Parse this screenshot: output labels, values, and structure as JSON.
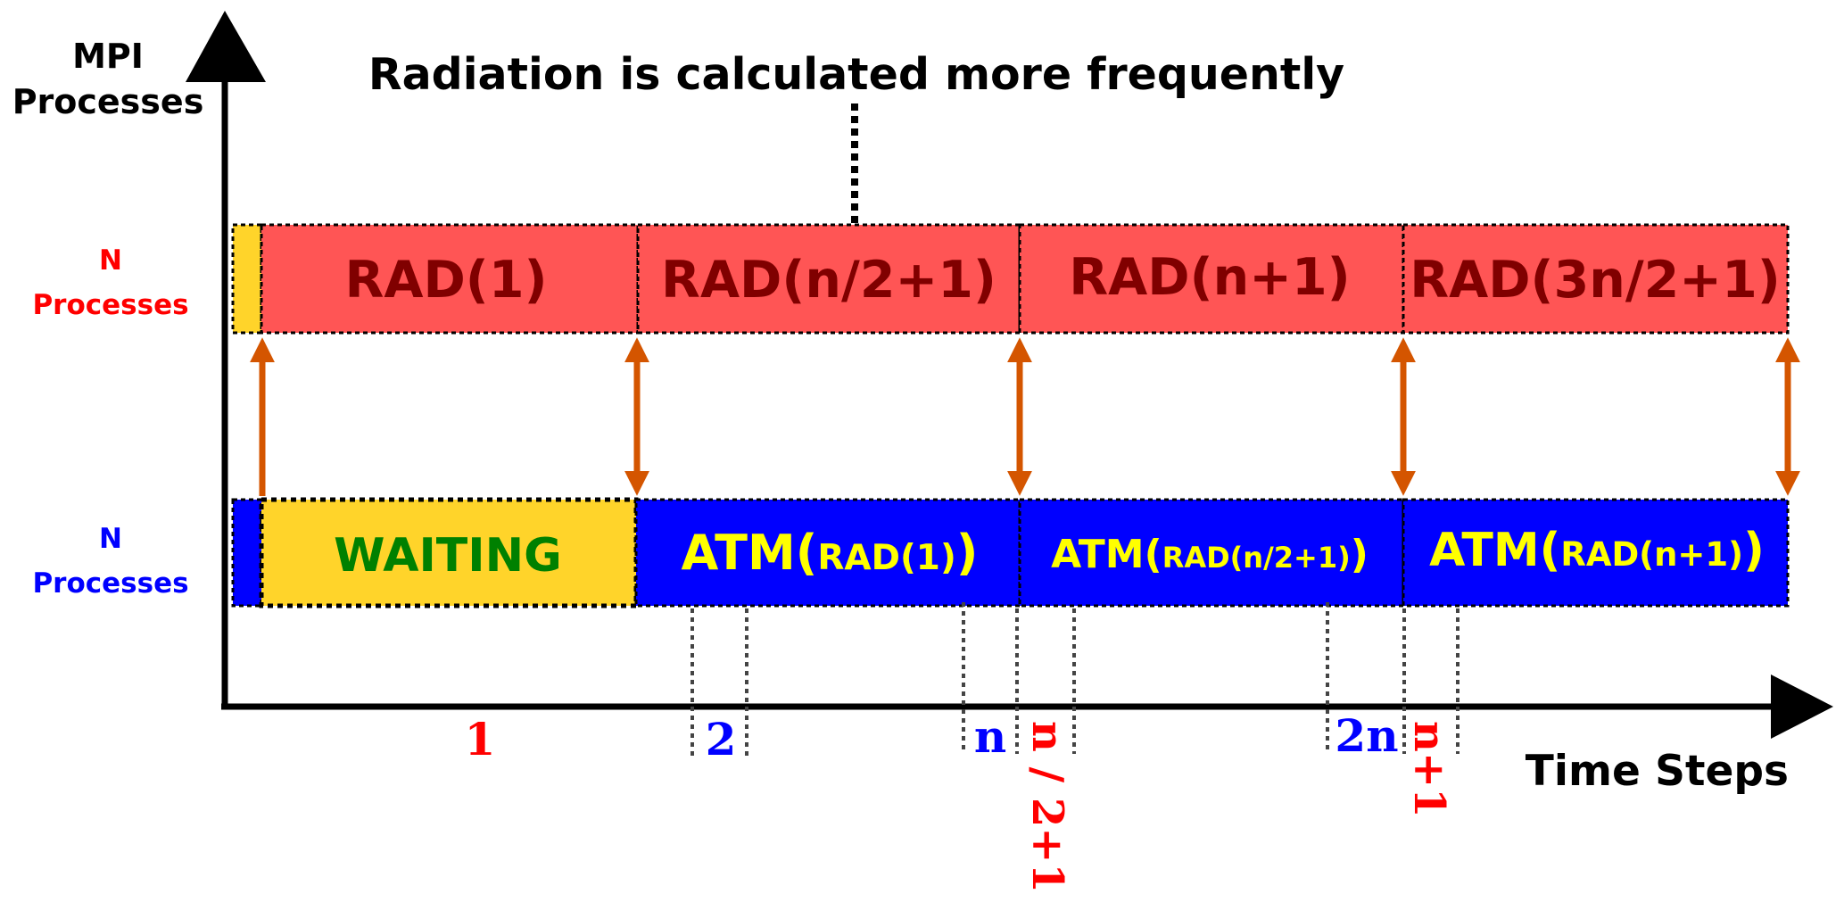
{
  "axes": {
    "y_label_line1": "MPI",
    "y_label_line2": "Processes",
    "x_label": "Time Steps"
  },
  "annotation": {
    "text": "Radiation is calculated more frequently"
  },
  "rows": {
    "rad": {
      "label_count": "N",
      "label_text": "Processes",
      "label_color": "#ff0000",
      "fill": "#ff5555",
      "text_color": "#800000",
      "blocks": [
        {
          "parts": [
            {
              "t": "RAD(1)"
            }
          ]
        },
        {
          "parts": [
            {
              "t": "RAD(n/2+1)"
            }
          ]
        },
        {
          "parts": [
            {
              "t": "RAD(n+1)"
            }
          ]
        },
        {
          "parts": [
            {
              "t": "RAD(3n/2+1)"
            }
          ]
        }
      ]
    },
    "atm": {
      "label_count": "N",
      "label_text": "Processes",
      "label_color": "#0000ff",
      "fill": "#0000ff",
      "text_color": "#ffff00",
      "waiting": {
        "text": "WAITING",
        "fill": "#ffd42a",
        "text_color": "#008000"
      },
      "blocks": [
        {
          "parts": [
            {
              "t": "ATM("
            },
            {
              "t": "RAD(1)",
              "small": true
            },
            {
              "t": ")"
            }
          ]
        },
        {
          "parts": [
            {
              "t": "ATM("
            },
            {
              "t": "RAD(n/2+1)",
              "small": true
            },
            {
              "t": ")"
            }
          ]
        },
        {
          "parts": [
            {
              "t": "ATM("
            },
            {
              "t": "RAD(n+1)",
              "small": true
            },
            {
              "t": ")"
            }
          ]
        }
      ]
    }
  },
  "arrows": {
    "color": "#d45500"
  },
  "ticks": [
    {
      "id": "1",
      "text": "1",
      "color": "#ff0000"
    },
    {
      "id": "2",
      "text": "2",
      "color": "#0000ff"
    },
    {
      "id": "n",
      "text": "n",
      "color": "#0000ff"
    },
    {
      "id": "n2",
      "text": "n / 2+1",
      "color": "#ff0000",
      "rotated": true
    },
    {
      "id": "2n",
      "text": "2n",
      "color": "#0000ff"
    },
    {
      "id": "np1",
      "text": "n+1",
      "color": "#ff0000",
      "rotated": true
    }
  ]
}
